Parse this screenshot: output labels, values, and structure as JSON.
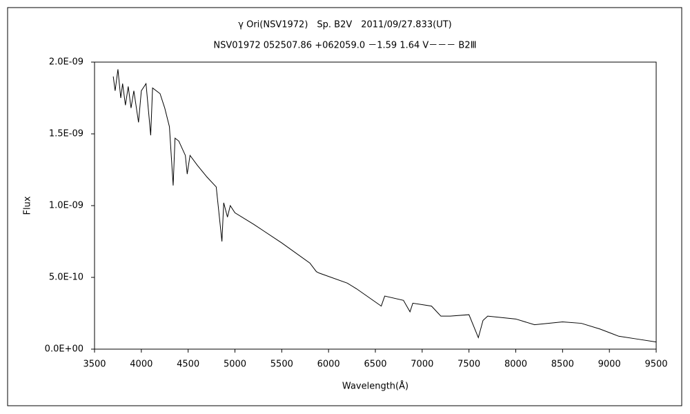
{
  "chart_data": {
    "type": "line",
    "title": "γ Ori(NSV1972)　Sp. B2V　2011/09/27.833(UT)",
    "subtitle": "NSV01972 052507.86 +062059.0 －1.59 1.64 V－－－ B2Ⅲ",
    "x_label": "Wavelength(Å)",
    "y_label": "Flux",
    "x": [
      3700,
      3720,
      3750,
      3780,
      3800,
      3830,
      3860,
      3890,
      3920,
      3970,
      4000,
      4050,
      4100,
      4120,
      4200,
      4250,
      4300,
      4340,
      4360,
      4400,
      4470,
      4490,
      4520,
      4600,
      4700,
      4800,
      4861,
      4880,
      4920,
      4950,
      5000,
      5200,
      5500,
      5800,
      5870,
      5900,
      6200,
      6300,
      6563,
      6600,
      6800,
      6870,
      6900,
      7100,
      7200,
      7300,
      7500,
      7600,
      7650,
      7700,
      8000,
      8200,
      8500,
      8700,
      8900,
      9100,
      9300,
      9500
    ],
    "series": [
      {
        "name": "Flux",
        "color": "#000000",
        "values": [
          1.9e-09,
          1.8e-09,
          1.95e-09,
          1.75e-09,
          1.85e-09,
          1.7e-09,
          1.83e-09,
          1.68e-09,
          1.8e-09,
          1.58e-09,
          1.8e-09,
          1.85e-09,
          1.49e-09,
          1.82e-09,
          1.78e-09,
          1.68e-09,
          1.55e-09,
          1.14e-09,
          1.47e-09,
          1.45e-09,
          1.35e-09,
          1.22e-09,
          1.35e-09,
          1.28e-09,
          1.2e-09,
          1.13e-09,
          7.5e-10,
          1.02e-09,
          9.2e-10,
          1e-09,
          9.5e-10,
          8.7e-10,
          7.4e-10,
          6e-10,
          5.4e-10,
          5.3e-10,
          4.6e-10,
          4.2e-10,
          3e-10,
          3.7e-10,
          3.4e-10,
          2.6e-10,
          3.2e-10,
          3e-10,
          2.3e-10,
          2.3e-10,
          2.4e-10,
          8e-11,
          2e-10,
          2.3e-10,
          2.1e-10,
          1.7e-10,
          1.9e-10,
          1.8e-10,
          1.4e-10,
          9e-11,
          7e-11,
          5e-11
        ]
      }
    ],
    "xlim": [
      3500,
      9500
    ],
    "xticks": [
      3500,
      4000,
      4500,
      5000,
      5500,
      6000,
      6500,
      7000,
      7500,
      8000,
      8500,
      9000,
      9500
    ],
    "ylim": [
      0,
      2e-09
    ],
    "yticks": [
      {
        "value": 0,
        "label": "0.0E+00"
      },
      {
        "value": 5e-10,
        "label": "5.0E-10"
      },
      {
        "value": 1e-09,
        "label": "1.0E-09"
      },
      {
        "value": 1.5e-09,
        "label": "1.5E-09"
      },
      {
        "value": 2e-09,
        "label": "2.0E-09"
      }
    ],
    "grid": false
  }
}
